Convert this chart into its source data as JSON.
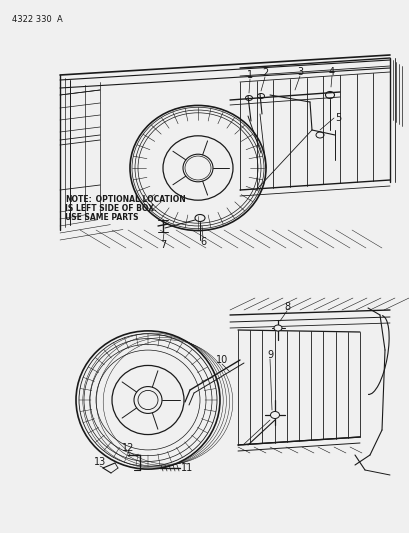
{
  "background_color": "#f0f0f0",
  "part_number": "4322 330  A",
  "note_bold": "NOTE:",
  "note_text": " OPTIONAL LOCATION\nIS LEFT SIDE OF BOX.\nUSE SAME PARTS",
  "line_color": "#1a1a1a",
  "text_color": "#1a1a1a",
  "fig_width": 4.1,
  "fig_height": 5.33,
  "dpi": 100
}
